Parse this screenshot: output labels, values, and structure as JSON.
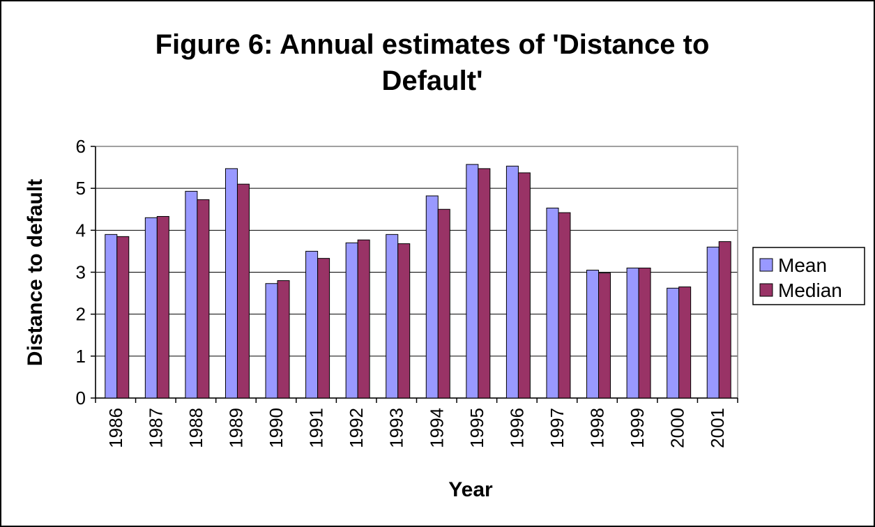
{
  "chart_data": {
    "type": "bar",
    "title": "Figure 6: Annual estimates of 'Distance to Default'",
    "x_label": "Year",
    "y_label": "Distance to default",
    "categories": [
      "1986",
      "1987",
      "1988",
      "1989",
      "1990",
      "1991",
      "1992",
      "1993",
      "1994",
      "1995",
      "1996",
      "1997",
      "1998",
      "1999",
      "2000",
      "2001"
    ],
    "series": [
      {
        "name": "Mean",
        "color": "#9999ff",
        "values": [
          3.9,
          4.3,
          4.93,
          5.47,
          2.73,
          3.5,
          3.7,
          3.9,
          4.82,
          5.57,
          5.53,
          4.53,
          3.05,
          3.1,
          2.62,
          3.6
        ]
      },
      {
        "name": "Median",
        "color": "#993366",
        "values": [
          3.85,
          4.33,
          4.73,
          5.1,
          2.8,
          3.33,
          3.77,
          3.68,
          4.5,
          5.47,
          5.37,
          4.42,
          2.98,
          3.1,
          2.65,
          3.73
        ]
      }
    ],
    "ylim": [
      0,
      6
    ],
    "yticks": [
      0,
      1,
      2,
      3,
      4,
      5,
      6
    ],
    "grid": true,
    "legend": "right"
  }
}
